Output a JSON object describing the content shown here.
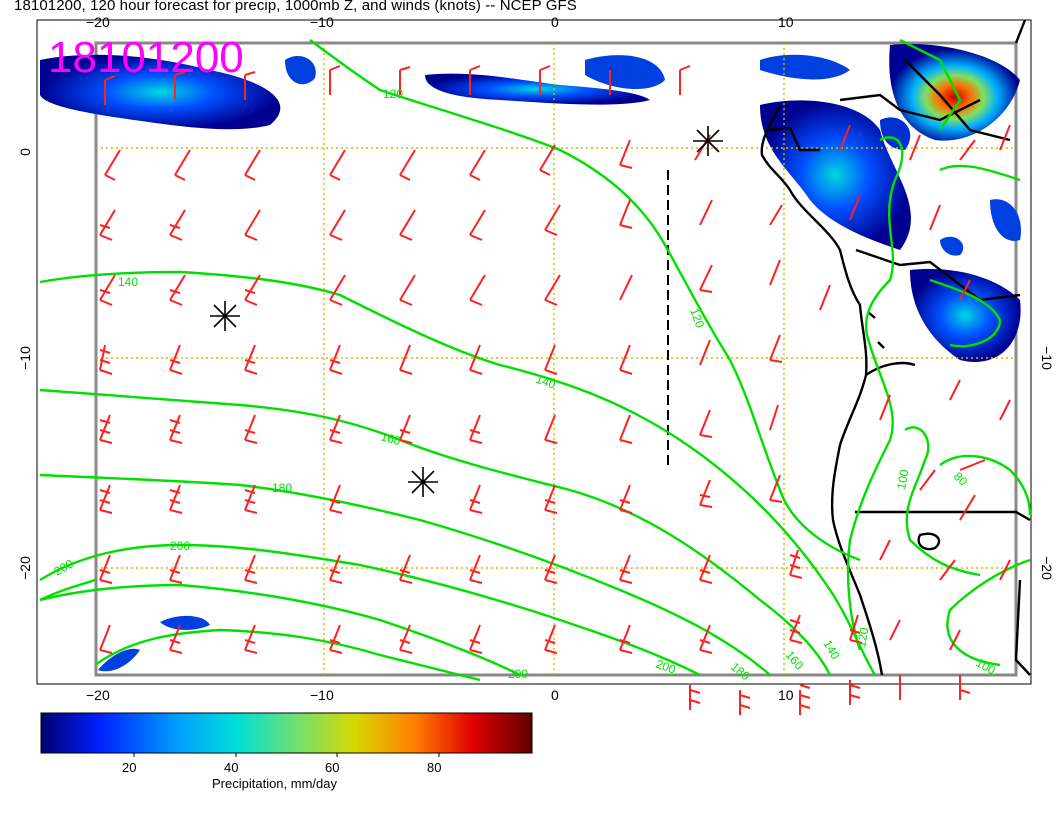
{
  "header": {
    "title": "18101200, 120 hour forecast for precip, 1000mb Z, and winds (knots) -- NCEP GFS",
    "stamp": "18101200"
  },
  "map": {
    "lon_ticks_top": [
      "−20",
      "−10",
      "0",
      "10"
    ],
    "lon_ticks_bottom": [
      "−20",
      "−10",
      "0",
      "10"
    ],
    "lat_ticks_left": [
      "0",
      "−10",
      "−20"
    ],
    "lat_ticks_right": [
      "−10",
      "−20"
    ],
    "contour_labels": [
      {
        "text": "120"
      },
      {
        "text": "140"
      },
      {
        "text": "120"
      },
      {
        "text": "140"
      },
      {
        "text": "160"
      },
      {
        "text": "180"
      },
      {
        "text": "200"
      },
      {
        "text": "200"
      },
      {
        "text": "200"
      },
      {
        "text": "200"
      },
      {
        "text": "180"
      },
      {
        "text": "160"
      },
      {
        "text": "140"
      },
      {
        "text": "120"
      },
      {
        "text": "100"
      },
      {
        "text": "80"
      },
      {
        "text": "100"
      }
    ],
    "colors": {
      "contour": "#00e000",
      "barb": "#ff2020",
      "grid": "#d4b800",
      "coast": "#000000",
      "stamp": "#ff00ff"
    },
    "markers": [
      "low-center",
      "low-center",
      "low-center"
    ]
  },
  "colorbar": {
    "ticks": [
      "20",
      "40",
      "60",
      "80"
    ],
    "title": "Precipitation, mm/day",
    "colormap": [
      "#000080",
      "#0030ff",
      "#00a8ff",
      "#00e0d0",
      "#80e060",
      "#d8d000",
      "#ff8000",
      "#e00000",
      "#800000"
    ]
  }
}
